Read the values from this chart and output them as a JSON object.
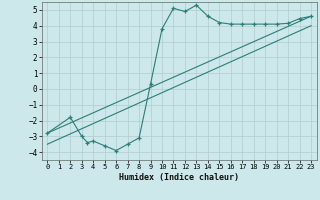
{
  "xlabel": "Humidex (Indice chaleur)",
  "bg_color": "#cce8ea",
  "line_color": "#2d7d78",
  "grid_color": "#b0cccc",
  "xlim": [
    -0.5,
    23.5
  ],
  "ylim": [
    -4.5,
    5.5
  ],
  "xticks": [
    0,
    1,
    2,
    3,
    4,
    5,
    6,
    7,
    8,
    9,
    10,
    11,
    12,
    13,
    14,
    15,
    16,
    17,
    18,
    19,
    20,
    21,
    22,
    23
  ],
  "yticks": [
    -4,
    -3,
    -2,
    -1,
    0,
    1,
    2,
    3,
    4,
    5
  ],
  "curve_x": [
    0,
    2,
    3,
    3.5,
    4,
    5,
    6,
    7,
    8,
    9,
    10,
    11,
    12,
    13,
    14,
    15,
    16,
    17,
    18,
    19,
    20,
    21,
    22,
    23
  ],
  "curve_y": [
    -2.8,
    -1.8,
    -3.0,
    -3.4,
    -3.3,
    -3.6,
    -3.9,
    -3.5,
    -3.1,
    0.3,
    3.8,
    5.1,
    4.9,
    5.3,
    4.6,
    4.2,
    4.1,
    4.1,
    4.1,
    4.1,
    4.1,
    4.15,
    4.45,
    4.6
  ],
  "line1_x": [
    0,
    23
  ],
  "line1_y": [
    -2.8,
    4.6
  ],
  "line2_x": [
    0,
    23
  ],
  "line2_y": [
    -3.5,
    4.0
  ]
}
